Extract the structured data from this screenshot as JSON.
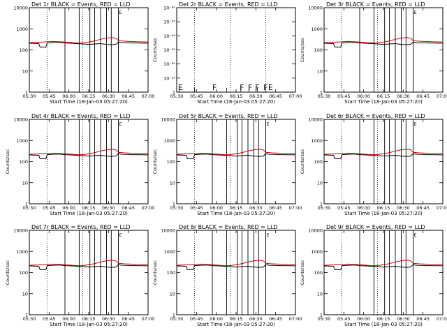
{
  "chart_data": {
    "type": "line",
    "subplot_grid": [
      3,
      3
    ],
    "x_tick_labels": [
      "05:30",
      "05:45",
      "06:00",
      "06:15",
      "06:30",
      "06:45",
      "07:00"
    ],
    "x_range_minutes": [
      330,
      430
    ],
    "xlabel": "Start Time (18-Jan-03 05:27:20)",
    "ylabel": "Counts/sec",
    "y_scale": "log",
    "y_tick_labels": [
      "1",
      "10",
      "100",
      "1000",
      "10000"
    ],
    "ylim": [
      1,
      15000
    ],
    "series_colors": {
      "events": "#000000",
      "lld": "#cc0000"
    },
    "dotted_vlines_minutes": [
      345,
      375,
      405
    ],
    "solid_vlines_minutes": [
      360,
      372,
      381,
      385,
      390,
      395,
      399,
      405
    ],
    "flag_label": "F",
    "end_flag_label": "E",
    "standard_events": {
      "x": [
        330,
        338,
        339,
        344,
        345,
        350,
        356,
        360,
        365,
        370,
        375,
        380,
        385,
        390,
        395,
        399,
        403,
        405,
        408,
        412,
        416,
        420,
        425,
        430
      ],
      "y": [
        260,
        250,
        170,
        170,
        270,
        280,
        290,
        270,
        260,
        250,
        240,
        230,
        240,
        250,
        230,
        220,
        230,
        300,
        280,
        275,
        270,
        268,
        265,
        262
      ]
    },
    "standard_lld": {
      "x": [
        330,
        340,
        350,
        360,
        370,
        375,
        380,
        385,
        390,
        395,
        400,
        403,
        405,
        410,
        420,
        430
      ],
      "y": [
        280,
        295,
        320,
        300,
        270,
        270,
        300,
        340,
        410,
        470,
        500,
        460,
        350,
        330,
        310,
        300
      ]
    },
    "panels": [
      {
        "title": "Det 1r BLACK = Events, RED = LLD",
        "show_ylabel": false,
        "status": "normal"
      },
      {
        "title": "Det 2r BLACK = Events, RED = LLD",
        "show_ylabel": true,
        "status": "no-data",
        "y_tick_labels": [
          "1",
          "10⁻¹⁰",
          "10⁻²⁰",
          "10⁻³⁰",
          "10⁻⁴⁰",
          "10⁻⁵⁰",
          "10⁻⁶⁰"
        ],
        "flags_minutes": [
          360,
          383,
          390,
          396,
          403,
          407
        ]
      },
      {
        "title": "Det 3r BLACK = Events, RED = LLD",
        "show_ylabel": true,
        "status": "normal"
      },
      {
        "title": "Det 4r BLACK = Events, RED = LLD",
        "show_ylabel": true,
        "status": "normal"
      },
      {
        "title": "Det 5r BLACK = Events, RED = LLD",
        "show_ylabel": true,
        "status": "normal"
      },
      {
        "title": "Det 6r BLACK = Events, RED = LLD",
        "show_ylabel": true,
        "status": "normal"
      },
      {
        "title": "Det 7r BLACK = Events, RED = LLD",
        "show_ylabel": true,
        "status": "normal"
      },
      {
        "title": "Det 8r BLACK = Events, RED = LLD",
        "show_ylabel": true,
        "status": "normal"
      },
      {
        "title": "Det 9r BLACK = Events, RED = LLD",
        "show_ylabel": true,
        "status": "normal"
      }
    ]
  }
}
